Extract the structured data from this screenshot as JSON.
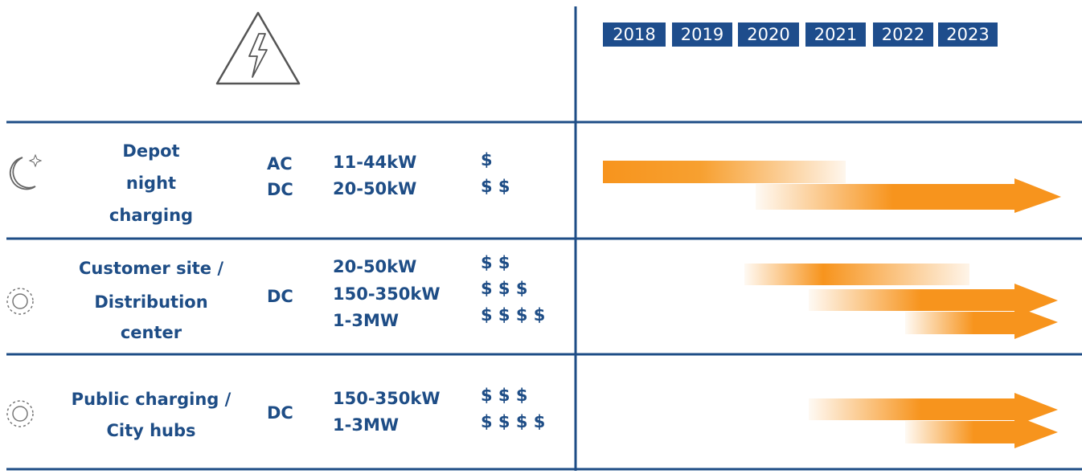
{
  "years": [
    "2018",
    "2019",
    "2020",
    "2021",
    "2022",
    "2023"
  ],
  "rows": [
    {
      "label": [
        "Depot",
        "night",
        "charging"
      ],
      "types": [
        "AC",
        "DC"
      ],
      "power": [
        "11-44kW",
        "20-50kW"
      ],
      "cost": [
        "$",
        "$ $"
      ]
    },
    {
      "label": [
        "Customer site /",
        "Distribution",
        "center"
      ],
      "types": [
        "DC"
      ],
      "power": [
        "20-50kW",
        "150-350kW",
        "1-3MW"
      ],
      "cost": [
        "$ $",
        "$ $ $",
        "$ $ $ $"
      ]
    },
    {
      "label": [
        "Public charging /",
        "City hubs"
      ],
      "types": [
        "DC"
      ],
      "power": [
        "150-350kW",
        "1-3MW"
      ],
      "cost": [
        "$ $ $",
        "$ $ $ $"
      ]
    }
  ]
}
